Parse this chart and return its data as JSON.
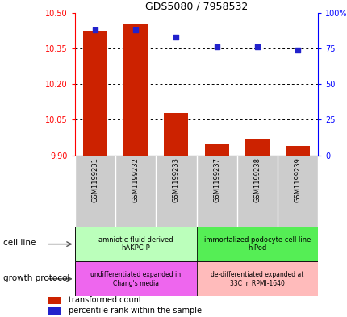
{
  "title": "GDS5080 / 7958532",
  "samples": [
    "GSM1199231",
    "GSM1199232",
    "GSM1199233",
    "GSM1199237",
    "GSM1199238",
    "GSM1199239"
  ],
  "transformed_counts": [
    10.42,
    10.45,
    10.08,
    9.95,
    9.97,
    9.94
  ],
  "percentile_ranks": [
    88,
    88,
    83,
    76,
    76,
    74
  ],
  "ylim_left": [
    9.9,
    10.5
  ],
  "yticks_left": [
    9.9,
    10.05,
    10.2,
    10.35,
    10.5
  ],
  "ylim_right": [
    0,
    100
  ],
  "yticks_right": [
    0,
    25,
    50,
    75,
    100
  ],
  "bar_color": "#cc2200",
  "dot_color": "#2222cc",
  "cell_line_groups": [
    {
      "label": "amniotic-fluid derived\nhAKPC-P",
      "start": 0,
      "end": 3,
      "color": "#bbffbb"
    },
    {
      "label": "immortalized podocyte cell line\nhIPod",
      "start": 3,
      "end": 6,
      "color": "#55ee55"
    }
  ],
  "growth_protocol_groups": [
    {
      "label": "undifferentiated expanded in\nChang's media",
      "start": 0,
      "end": 3,
      "color": "#ee66ee"
    },
    {
      "label": "de-differentiated expanded at\n33C in RPMI-1640",
      "start": 3,
      "end": 6,
      "color": "#ffbbbb"
    }
  ],
  "cell_line_label": "cell line",
  "growth_protocol_label": "growth protocol",
  "legend_bar_label": "transformed count",
  "legend_dot_label": "percentile rank within the sample"
}
